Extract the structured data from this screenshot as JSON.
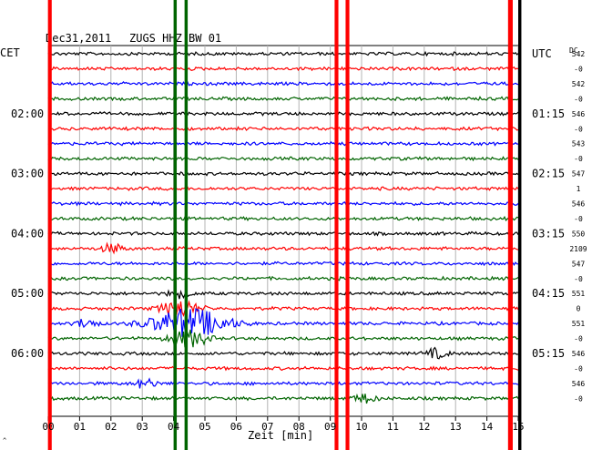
{
  "header": {
    "date": "Dec31,2011",
    "station": "ZUGS HHZ BW 01",
    "left_tz": "CET",
    "right_tz": "UTC",
    "dc_label": "DC"
  },
  "chart_data": {
    "type": "line",
    "title": "Dec31,2011   ZUGS HHZ BW 01",
    "xlabel": "Zeit [min]",
    "xlim": [
      0,
      15
    ],
    "x_ticks": [
      "00",
      "01",
      "02",
      "03",
      "04",
      "05",
      "06",
      "07",
      "08",
      "09",
      "10",
      "11",
      "12",
      "13",
      "14",
      "15"
    ],
    "trace_count": 24,
    "trace_colors": [
      "#000000",
      "#ff0000",
      "#0000ff",
      "#006400"
    ],
    "left_time_labels": [
      {
        "trace": 4,
        "label": "02:00"
      },
      {
        "trace": 8,
        "label": "03:00"
      },
      {
        "trace": 12,
        "label": "04:00"
      },
      {
        "trace": 16,
        "label": "05:00"
      },
      {
        "trace": 20,
        "label": "06:00"
      }
    ],
    "right_time_labels": [
      {
        "trace": 0,
        "label": "UTC"
      },
      {
        "trace": 4,
        "label": "01:15"
      },
      {
        "trace": 8,
        "label": "02:15"
      },
      {
        "trace": 12,
        "label": "03:15"
      },
      {
        "trace": 16,
        "label": "04:15"
      },
      {
        "trace": 20,
        "label": "05:15"
      }
    ],
    "dc_offsets": [
      {
        "trace": 0,
        "label": "542"
      },
      {
        "trace": 1,
        "label": "-0"
      },
      {
        "trace": 2,
        "label": "542"
      },
      {
        "trace": 3,
        "label": "-0"
      },
      {
        "trace": 4,
        "label": "546"
      },
      {
        "trace": 5,
        "label": "-0"
      },
      {
        "trace": 6,
        "label": "543"
      },
      {
        "trace": 7,
        "label": "-0"
      },
      {
        "trace": 8,
        "label": "547"
      },
      {
        "trace": 9,
        "label": "1"
      },
      {
        "trace": 10,
        "label": "546"
      },
      {
        "trace": 11,
        "label": "-0"
      },
      {
        "trace": 12,
        "label": "550"
      },
      {
        "trace": 13,
        "label": "2109"
      },
      {
        "trace": 14,
        "label": "547"
      },
      {
        "trace": 15,
        "label": "-0"
      },
      {
        "trace": 16,
        "label": "551"
      },
      {
        "trace": 17,
        "label": "0"
      },
      {
        "trace": 18,
        "label": "551"
      },
      {
        "trace": 19,
        "label": "-0"
      },
      {
        "trace": 20,
        "label": "546"
      },
      {
        "trace": 21,
        "label": "-0"
      },
      {
        "trace": 22,
        "label": "546"
      },
      {
        "trace": 23,
        "label": "-0"
      }
    ],
    "vertical_marker_bands": [
      {
        "x": 0.05,
        "width_min": 0.12,
        "color": "#ff0000"
      },
      {
        "x": 4.05,
        "width_min": 0.1,
        "color": "#006400"
      },
      {
        "x": 4.4,
        "width_min": 0.1,
        "color": "#006400"
      },
      {
        "x": 9.2,
        "width_min": 0.12,
        "color": "#ff0000"
      },
      {
        "x": 9.55,
        "width_min": 0.12,
        "color": "#ff0000"
      },
      {
        "x": 14.75,
        "width_min": 0.15,
        "color": "#ff0000"
      },
      {
        "x": 15.05,
        "width_min": 0.1,
        "color": "#000000"
      }
    ],
    "events": [
      {
        "trace": 13,
        "x": 2.05,
        "amplitude": "small"
      },
      {
        "trace": 16,
        "x": 4.2,
        "amplitude": "small"
      },
      {
        "trace": 17,
        "x": 4.2,
        "amplitude": "medium"
      },
      {
        "trace": 18,
        "x": 4.5,
        "amplitude": "large"
      },
      {
        "trace": 19,
        "x": 4.5,
        "amplitude": "medium"
      },
      {
        "trace": 18,
        "x": 1.2,
        "amplitude": "small"
      },
      {
        "trace": 20,
        "x": 12.4,
        "amplitude": "small"
      },
      {
        "trace": 22,
        "x": 3.1,
        "amplitude": "small"
      },
      {
        "trace": 23,
        "x": 10.1,
        "amplitude": "small"
      }
    ],
    "grid": true
  }
}
